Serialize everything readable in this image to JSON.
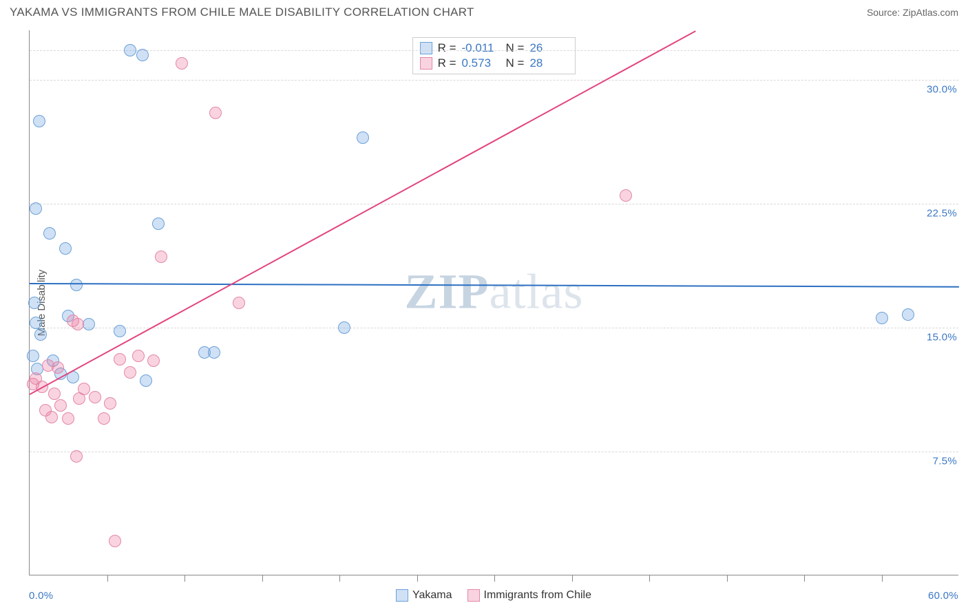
{
  "header": {
    "title": "YAKAMA VS IMMIGRANTS FROM CHILE MALE DISABILITY CORRELATION CHART",
    "source": "Source: ZipAtlas.com"
  },
  "chart": {
    "type": "scatter",
    "yaxis_title": "Male Disability",
    "xlim": [
      0,
      60
    ],
    "ylim": [
      0,
      33
    ],
    "xlabel_min": "0.0%",
    "xlabel_max": "60.0%",
    "yticks": [
      {
        "v": 7.5,
        "label": "7.5%"
      },
      {
        "v": 15.0,
        "label": "15.0%"
      },
      {
        "v": 22.5,
        "label": "22.5%"
      },
      {
        "v": 30.0,
        "label": "30.0%"
      }
    ],
    "xticks_minor": [
      5,
      10,
      15,
      20,
      25,
      30,
      35,
      40,
      45,
      50,
      55
    ],
    "background_color": "#ffffff",
    "grid_color": "#d8d8d8",
    "marker_radius": 9,
    "marker_border_width": 1.2,
    "series": [
      {
        "name": "Yakama",
        "fill_color": "rgba(120,170,225,0.35)",
        "stroke_color": "#6aa0d8",
        "trend_color": "#2b6fc2",
        "trend": {
          "x0": 0,
          "y0": 17.7,
          "x1": 60,
          "y1": 17.5
        },
        "stats": {
          "r": "-0.011",
          "n": "26"
        },
        "points": [
          {
            "x": 0.6,
            "y": 27.5
          },
          {
            "x": 0.4,
            "y": 22.2
          },
          {
            "x": 1.3,
            "y": 20.7
          },
          {
            "x": 2.3,
            "y": 19.8
          },
          {
            "x": 3.0,
            "y": 17.6
          },
          {
            "x": 0.3,
            "y": 16.5
          },
          {
            "x": 0.4,
            "y": 15.3
          },
          {
            "x": 2.5,
            "y": 15.7
          },
          {
            "x": 3.8,
            "y": 15.2
          },
          {
            "x": 0.7,
            "y": 14.6
          },
          {
            "x": 5.8,
            "y": 14.8
          },
          {
            "x": 0.2,
            "y": 13.3
          },
          {
            "x": 1.5,
            "y": 13.0
          },
          {
            "x": 0.5,
            "y": 12.5
          },
          {
            "x": 2.0,
            "y": 12.2
          },
          {
            "x": 2.8,
            "y": 12.0
          },
          {
            "x": 7.5,
            "y": 11.8
          },
          {
            "x": 6.5,
            "y": 31.8
          },
          {
            "x": 7.3,
            "y": 31.5
          },
          {
            "x": 8.3,
            "y": 21.3
          },
          {
            "x": 11.3,
            "y": 13.5
          },
          {
            "x": 11.9,
            "y": 13.5
          },
          {
            "x": 20.3,
            "y": 15.0
          },
          {
            "x": 21.5,
            "y": 26.5
          },
          {
            "x": 55.0,
            "y": 15.6
          },
          {
            "x": 56.7,
            "y": 15.8
          }
        ]
      },
      {
        "name": "Immigrants from Chile",
        "fill_color": "rgba(235,120,160,0.32)",
        "stroke_color": "#e386a6",
        "trend_color": "#e2457f",
        "trend": {
          "x0": 0,
          "y0": 11.0,
          "x1": 43,
          "y1": 33.0
        },
        "stats": {
          "r": "0.573",
          "n": "28"
        },
        "points": [
          {
            "x": 0.2,
            "y": 11.6
          },
          {
            "x": 0.4,
            "y": 11.9
          },
          {
            "x": 0.8,
            "y": 11.4
          },
          {
            "x": 1.2,
            "y": 12.7
          },
          {
            "x": 1.6,
            "y": 11.0
          },
          {
            "x": 2.0,
            "y": 10.3
          },
          {
            "x": 1.0,
            "y": 10.0
          },
          {
            "x": 1.4,
            "y": 9.6
          },
          {
            "x": 2.5,
            "y": 9.5
          },
          {
            "x": 3.2,
            "y": 10.7
          },
          {
            "x": 3.5,
            "y": 11.3
          },
          {
            "x": 4.2,
            "y": 10.8
          },
          {
            "x": 4.8,
            "y": 9.5
          },
          {
            "x": 5.2,
            "y": 10.4
          },
          {
            "x": 5.8,
            "y": 13.1
          },
          {
            "x": 6.5,
            "y": 12.3
          },
          {
            "x": 2.8,
            "y": 15.4
          },
          {
            "x": 3.1,
            "y": 15.2
          },
          {
            "x": 7.0,
            "y": 13.3
          },
          {
            "x": 8.0,
            "y": 13.0
          },
          {
            "x": 8.5,
            "y": 19.3
          },
          {
            "x": 9.8,
            "y": 31.0
          },
          {
            "x": 12.0,
            "y": 28.0
          },
          {
            "x": 13.5,
            "y": 16.5
          },
          {
            "x": 3.0,
            "y": 7.2
          },
          {
            "x": 5.5,
            "y": 2.1
          },
          {
            "x": 38.5,
            "y": 23.0
          },
          {
            "x": 1.8,
            "y": 12.6
          }
        ]
      }
    ],
    "stats_box": {
      "rows": [
        {
          "series": 0,
          "r_label": "R =",
          "n_label": "N ="
        },
        {
          "series": 1,
          "r_label": "R =",
          "n_label": "N ="
        }
      ]
    },
    "bottom_legend": [
      "Yakama",
      "Immigrants from Chile"
    ],
    "watermark": {
      "zip": "ZIP",
      "atlas": "atlas"
    }
  }
}
